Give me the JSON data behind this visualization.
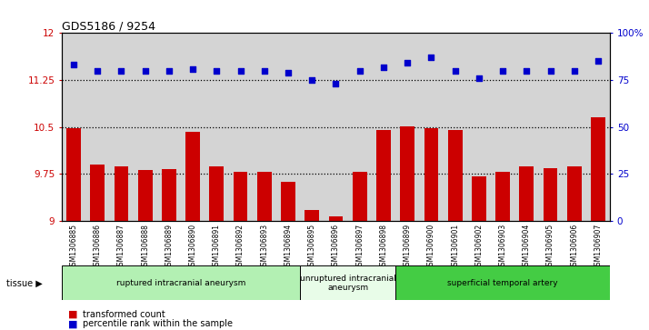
{
  "title": "GDS5186 / 9254",
  "samples": [
    "GSM1306885",
    "GSM1306886",
    "GSM1306887",
    "GSM1306888",
    "GSM1306889",
    "GSM1306890",
    "GSM1306891",
    "GSM1306892",
    "GSM1306893",
    "GSM1306894",
    "GSM1306895",
    "GSM1306896",
    "GSM1306897",
    "GSM1306898",
    "GSM1306899",
    "GSM1306900",
    "GSM1306901",
    "GSM1306902",
    "GSM1306903",
    "GSM1306904",
    "GSM1306905",
    "GSM1306906",
    "GSM1306907"
  ],
  "bar_values": [
    10.48,
    9.9,
    9.88,
    9.82,
    9.83,
    10.42,
    9.87,
    9.78,
    9.79,
    9.62,
    9.17,
    9.08,
    9.78,
    10.46,
    10.51,
    10.48,
    10.45,
    9.72,
    9.78,
    9.87,
    9.85,
    9.87,
    10.65
  ],
  "dot_values": [
    83,
    80,
    80,
    80,
    80,
    81,
    80,
    80,
    80,
    79,
    75,
    73,
    80,
    82,
    84,
    87,
    80,
    76,
    80,
    80,
    80,
    80,
    85
  ],
  "bar_color": "#cc0000",
  "dot_color": "#0000cc",
  "ylim_left": [
    9,
    12
  ],
  "ylim_right": [
    0,
    100
  ],
  "yticks_left": [
    9,
    9.75,
    10.5,
    11.25,
    12
  ],
  "yticks_right": [
    0,
    25,
    50,
    75,
    100
  ],
  "ytick_labels_left": [
    "9",
    "9.75",
    "10.5",
    "11.25",
    "12"
  ],
  "ytick_labels_right": [
    "0",
    "25",
    "50",
    "75",
    "100%"
  ],
  "hlines": [
    9.75,
    10.5,
    11.25
  ],
  "groups": [
    {
      "label": "ruptured intracranial aneurysm",
      "start": 0,
      "end": 10,
      "color": "#b3f0b3",
      "n": 10
    },
    {
      "label": "unruptured intracranial\naneurysm",
      "start": 10,
      "end": 14,
      "color": "#e8fce8",
      "n": 4
    },
    {
      "label": "superficial temporal artery",
      "start": 14,
      "end": 23,
      "color": "#44cc44",
      "n": 9
    }
  ],
  "tissue_label": "tissue",
  "legend_bar_label": "transformed count",
  "legend_dot_label": "percentile rank within the sample",
  "plot_bg": "#d4d4d4",
  "tick_bg": "#d4d4d4",
  "fig_bg": "#ffffff"
}
